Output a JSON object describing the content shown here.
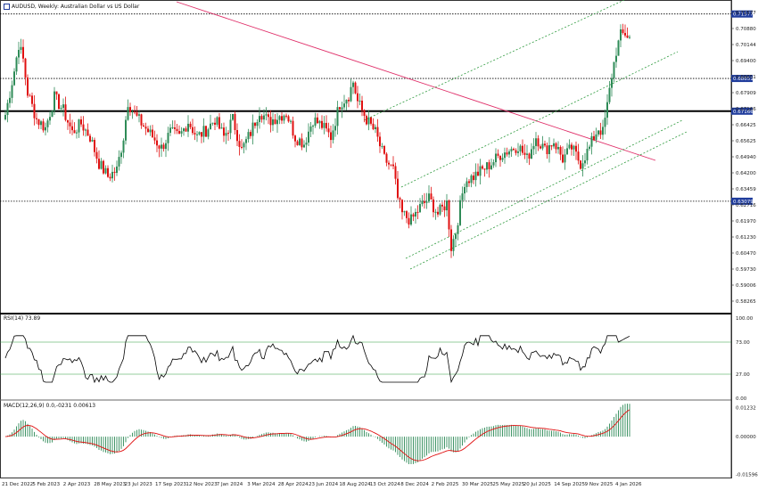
{
  "header": {
    "symbol_line": "AUDUSD, Weekly: Australian Dollar vs US Dollar"
  },
  "rsi_panel": {
    "label": "RSI(14) 73.89"
  },
  "macd_panel": {
    "label": "MACD(12,26,9) 0.0,-0231 0.00613"
  },
  "colors": {
    "bull": "#2e8b57",
    "bear": "#e01010",
    "trendline": "#e0306a",
    "channel": "#2e9a3e",
    "price_tag": "#1f3c9c"
  },
  "chart_data": {
    "type": "candlestick",
    "title": "AUDUSD, Weekly: Australian Dollar vs US Dollar",
    "price_axis": {
      "ticks": [
        "0.71577",
        "0.70880",
        "0.70144",
        "0.69400",
        "0.68651",
        "0.67909",
        "0.67166",
        "0.66425",
        "0.65625",
        "0.64940",
        "0.64200",
        "0.63459",
        "0.62716",
        "0.61970",
        "0.61230",
        "0.60470",
        "0.59730",
        "0.59006",
        "0.58265"
      ],
      "ylim": [
        0.5806,
        0.7205
      ]
    },
    "price_tags": [
      "0.71577",
      "0.68651",
      "0.67166",
      "0.63079"
    ],
    "horizontal_levels": [
      0.71577,
      0.68651,
      0.67166,
      0.63079
    ],
    "time_axis": [
      "21 Dec 2022",
      "5 Feb 2023",
      "2 Apr 2023",
      "28 May 2023",
      "23 Jul 2023",
      "17 Sep 2023",
      "12 Nov 2023",
      "7 Jan 2024",
      "3 Mar 2024",
      "28 Apr 2024",
      "23 Jun 2024",
      "18 Aug 2024",
      "13 Oct 2024",
      "8 Dec 2024",
      "2 Feb 2025",
      "30 Mar 2025",
      "25 May 2025",
      "20 Jul 2025",
      "14 Sep 2025",
      "9 Nov 2025",
      "4 Jan 2026"
    ],
    "close_anchors": [
      [
        0,
        0.67
      ],
      [
        4,
        0.69
      ],
      [
        6,
        0.702
      ],
      [
        8,
        0.695
      ],
      [
        10,
        0.68
      ],
      [
        14,
        0.668
      ],
      [
        18,
        0.664
      ],
      [
        22,
        0.678
      ],
      [
        26,
        0.672
      ],
      [
        30,
        0.662
      ],
      [
        34,
        0.666
      ],
      [
        38,
        0.66
      ],
      [
        42,
        0.648
      ],
      [
        46,
        0.642
      ],
      [
        50,
        0.645
      ],
      [
        53,
        0.66
      ],
      [
        55,
        0.676
      ],
      [
        58,
        0.67
      ],
      [
        62,
        0.665
      ],
      [
        66,
        0.66
      ],
      [
        70,
        0.655
      ],
      [
        74,
        0.662
      ],
      [
        78,
        0.66
      ],
      [
        82,
        0.667
      ],
      [
        86,
        0.66
      ],
      [
        90,
        0.663
      ],
      [
        94,
        0.668
      ],
      [
        98,
        0.66
      ],
      [
        102,
        0.668
      ],
      [
        106,
        0.654
      ],
      [
        110,
        0.662
      ],
      [
        114,
        0.672
      ],
      [
        118,
        0.667
      ],
      [
        122,
        0.669
      ],
      [
        126,
        0.671
      ],
      [
        130,
        0.66
      ],
      [
        134,
        0.657
      ],
      [
        138,
        0.668
      ],
      [
        142,
        0.665
      ],
      [
        146,
        0.66
      ],
      [
        150,
        0.675
      ],
      [
        154,
        0.679
      ],
      [
        156,
        0.685
      ],
      [
        158,
        0.676
      ],
      [
        162,
        0.668
      ],
      [
        166,
        0.662
      ],
      [
        170,
        0.65
      ],
      [
        174,
        0.645
      ],
      [
        176,
        0.632
      ],
      [
        178,
        0.625
      ],
      [
        182,
        0.622
      ],
      [
        186,
        0.628
      ],
      [
        190,
        0.632
      ],
      [
        194,
        0.625
      ],
      [
        198,
        0.63
      ],
      [
        200,
        0.61
      ],
      [
        202,
        0.617
      ],
      [
        206,
        0.64
      ],
      [
        210,
        0.642
      ],
      [
        214,
        0.645
      ],
      [
        218,
        0.648
      ],
      [
        222,
        0.652
      ],
      [
        226,
        0.654
      ],
      [
        230,
        0.656
      ],
      [
        234,
        0.65
      ],
      [
        238,
        0.66
      ],
      [
        242,
        0.654
      ],
      [
        246,
        0.658
      ],
      [
        250,
        0.65
      ],
      [
        254,
        0.655
      ],
      [
        258,
        0.648
      ],
      [
        262,
        0.655
      ],
      [
        264,
        0.66
      ],
      [
        266,
        0.664
      ],
      [
        268,
        0.662
      ],
      [
        270,
        0.674
      ],
      [
        272,
        0.688
      ],
      [
        274,
        0.699
      ],
      [
        276,
        0.706
      ],
      [
        278,
        0.707
      ],
      [
        280,
        0.705
      ]
    ],
    "rsi": {
      "label": "RSI(14) 73.89",
      "levels": [
        70,
        30
      ],
      "ylim": [
        0,
        100
      ],
      "tick_labels": [
        "100.00",
        "73.00",
        "27.00",
        "0.00"
      ],
      "last": 73.89
    },
    "macd": {
      "label": "MACD(12,26,9) 0.0,-0231 0.00613",
      "tick_labels": [
        "0.01232",
        "0.00000",
        "-0.01596"
      ],
      "ylim": [
        -0.0165,
        0.0128
      ]
    }
  }
}
